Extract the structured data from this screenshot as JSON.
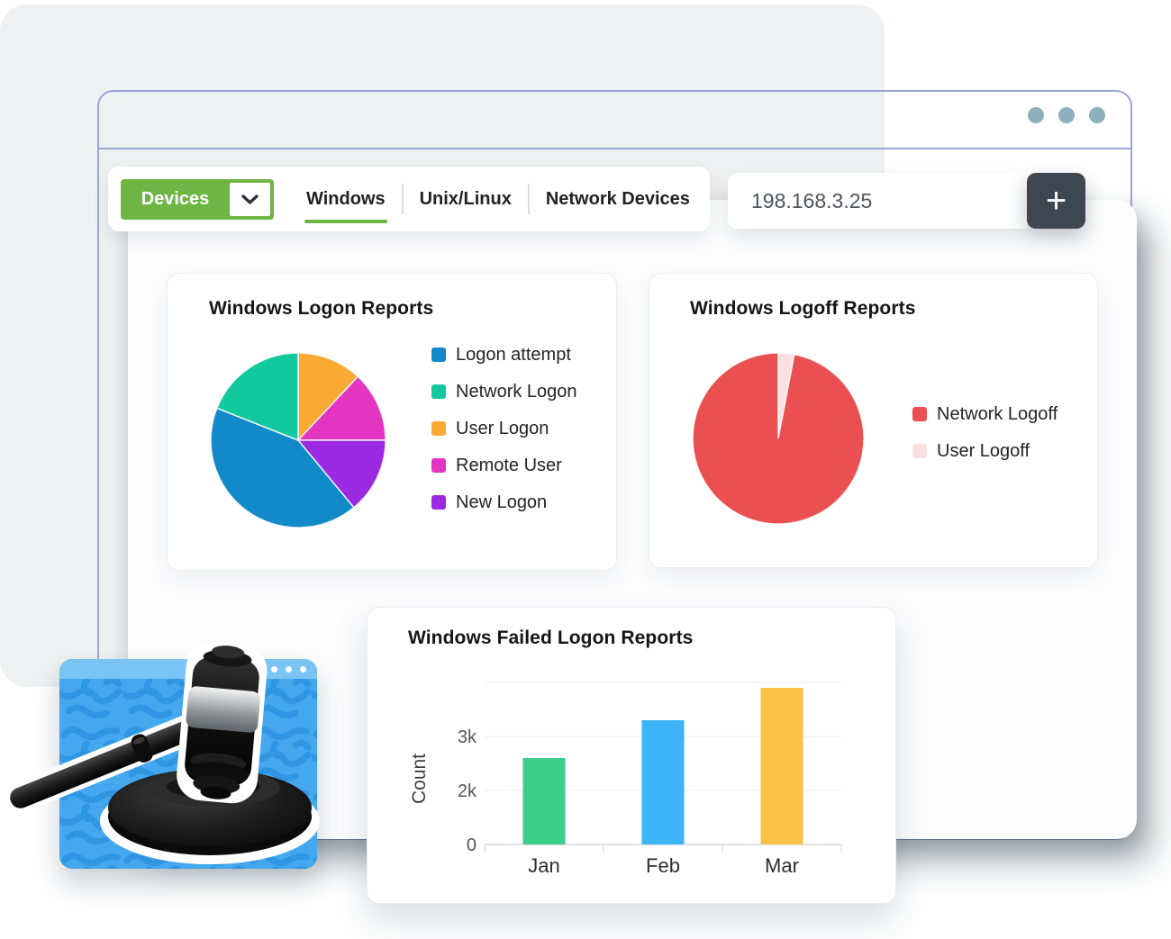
{
  "toolbar": {
    "devices_label": "Devices",
    "tabs": [
      {
        "label": "Windows",
        "active": true
      },
      {
        "label": "Unix/Linux",
        "active": false
      },
      {
        "label": "Network Devices",
        "active": false
      }
    ]
  },
  "address_bar": {
    "value": "198.168.3.25",
    "add_button_label": "+"
  },
  "chart_data": [
    {
      "type": "pie",
      "title": "Windows Logon Reports",
      "slices": [
        {
          "label": "User Logon",
          "value": 12,
          "color": "#faa932"
        },
        {
          "label": "Remote User",
          "value": 13,
          "color": "#e335c1"
        },
        {
          "label": "New Logon",
          "value": 14,
          "color": "#9c2ae2"
        },
        {
          "label": "Logon attempt",
          "value": 42,
          "color": "#1289c9"
        },
        {
          "label": "Network Logon",
          "value": 19,
          "color": "#12c99f"
        }
      ],
      "start_angle_deg": 0,
      "legend_position": "right",
      "legend_order": [
        "Logon attempt",
        "Network Logon",
        "User Logon",
        "Remote User",
        "New Logon"
      ]
    },
    {
      "type": "pie",
      "title": "Windows Logoff Reports",
      "slices": [
        {
          "label": "User Logoff",
          "value": 3,
          "color": "#fbdfe3"
        },
        {
          "label": "Network Logoff",
          "value": 97,
          "color": "#ea5051"
        }
      ],
      "start_angle_deg": 0,
      "legend_position": "right",
      "legend_order": [
        "Network Logoff",
        "User Logoff"
      ]
    },
    {
      "type": "bar",
      "title": "Windows Failed Logon Reports",
      "xlabel": "",
      "ylabel": "Count",
      "categories": [
        "Jan",
        "Feb",
        "Mar"
      ],
      "values": [
        2600,
        3300,
        3900
      ],
      "bar_colors": [
        "#3ccd8a",
        "#3cb4f5",
        "#fbc245"
      ],
      "yticks": [
        {
          "value": 0,
          "label": "0"
        },
        {
          "value": 2000,
          "label": "2k"
        },
        {
          "value": 3000,
          "label": "3k"
        },
        {
          "value": 4000,
          "label": ""
        }
      ],
      "ylim": [
        0,
        4000
      ],
      "grid": true
    }
  ],
  "colors": {
    "accent_green": "#6fb545",
    "window_outline": "#9aa4d8",
    "window_dots": "#8cb0bc",
    "add_button": "#3d4752",
    "gavel_card_blue": "#45a7ee",
    "gavel_card_topbar": "#79c4f4"
  }
}
